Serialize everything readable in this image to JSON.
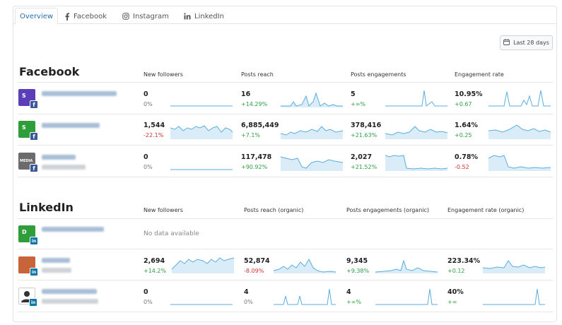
{
  "tabs": [
    {
      "label": "Overview",
      "icon": "none"
    },
    {
      "label": "Facebook",
      "icon": "facebook-icon"
    },
    {
      "label": "Instagram",
      "icon": "instagram-icon"
    },
    {
      "label": "LinkedIn",
      "icon": "linkedin-icon"
    }
  ],
  "date_range": "Last 28 days",
  "colors": {
    "accent": "#2a6fb4",
    "positive": "#2e9e44",
    "negative": "#cc3333",
    "spark_line": "#5aaedb",
    "spark_fill": "#d9ecf8"
  },
  "facebook": {
    "title": "Facebook",
    "columns": [
      "New followers",
      "Posts reach",
      "Posts engagements",
      "Engagement rate"
    ],
    "rows": [
      {
        "avatar_letter": "S",
        "avatar_color": "#5b3fb8",
        "metrics": [
          {
            "value": "0",
            "delta": "0%",
            "trend": "neu"
          },
          {
            "value": "16",
            "delta": "+14.29%",
            "trend": "pos"
          },
          {
            "value": "5",
            "delta": "+∞%",
            "trend": "pos"
          },
          {
            "value": "10.95%",
            "delta": "+0.67",
            "trend": "pos"
          }
        ]
      },
      {
        "avatar_letter": "S",
        "avatar_color": "#2f9e3a",
        "metrics": [
          {
            "value": "1,544",
            "delta": "-22.1%",
            "trend": "neg"
          },
          {
            "value": "6,885,449",
            "delta": "+7.1%",
            "trend": "pos"
          },
          {
            "value": "378,416",
            "delta": "+21.63%",
            "trend": "pos"
          },
          {
            "value": "1.64%",
            "delta": "+0.25",
            "trend": "pos"
          }
        ]
      },
      {
        "avatar_letter": "MEDIA",
        "avatar_color": "#6b6b6b",
        "metrics": [
          {
            "value": "0",
            "delta": "0%",
            "trend": "neu"
          },
          {
            "value": "117,478",
            "delta": "+90.92%",
            "trend": "pos"
          },
          {
            "value": "2,027",
            "delta": "+21.52%",
            "trend": "pos"
          },
          {
            "value": "0.78%",
            "delta": "-0.52",
            "trend": "neg"
          }
        ]
      }
    ]
  },
  "linkedin": {
    "title": "LinkedIn",
    "columns": [
      "New followers",
      "Posts reach (organic)",
      "Posts engagements (organic)",
      "Engagement rate (organic)"
    ],
    "no_data": "No data available",
    "rows": [
      {
        "avatar_letter": "D",
        "avatar_color": "#2f9e3a"
      },
      {
        "avatar_letter": "",
        "avatar_color": "#c8643a",
        "metrics": [
          {
            "value": "2,694",
            "delta": "+14.2%",
            "trend": "pos"
          },
          {
            "value": "52,874",
            "delta": "-8.09%",
            "trend": "neg"
          },
          {
            "value": "9,345",
            "delta": "+9.38%",
            "trend": "pos"
          },
          {
            "value": "223.34%",
            "delta": "+0.12",
            "trend": "pos"
          }
        ]
      },
      {
        "avatar_letter": "",
        "avatar_color": "#ffffff",
        "metrics": [
          {
            "value": "0",
            "delta": "0%",
            "trend": "neu"
          },
          {
            "value": "4",
            "delta": "0%",
            "trend": "neu"
          },
          {
            "value": "4",
            "delta": "+∞%",
            "trend": "pos"
          },
          {
            "value": "40%",
            "delta": "+∞",
            "trend": "pos"
          }
        ]
      }
    ]
  }
}
